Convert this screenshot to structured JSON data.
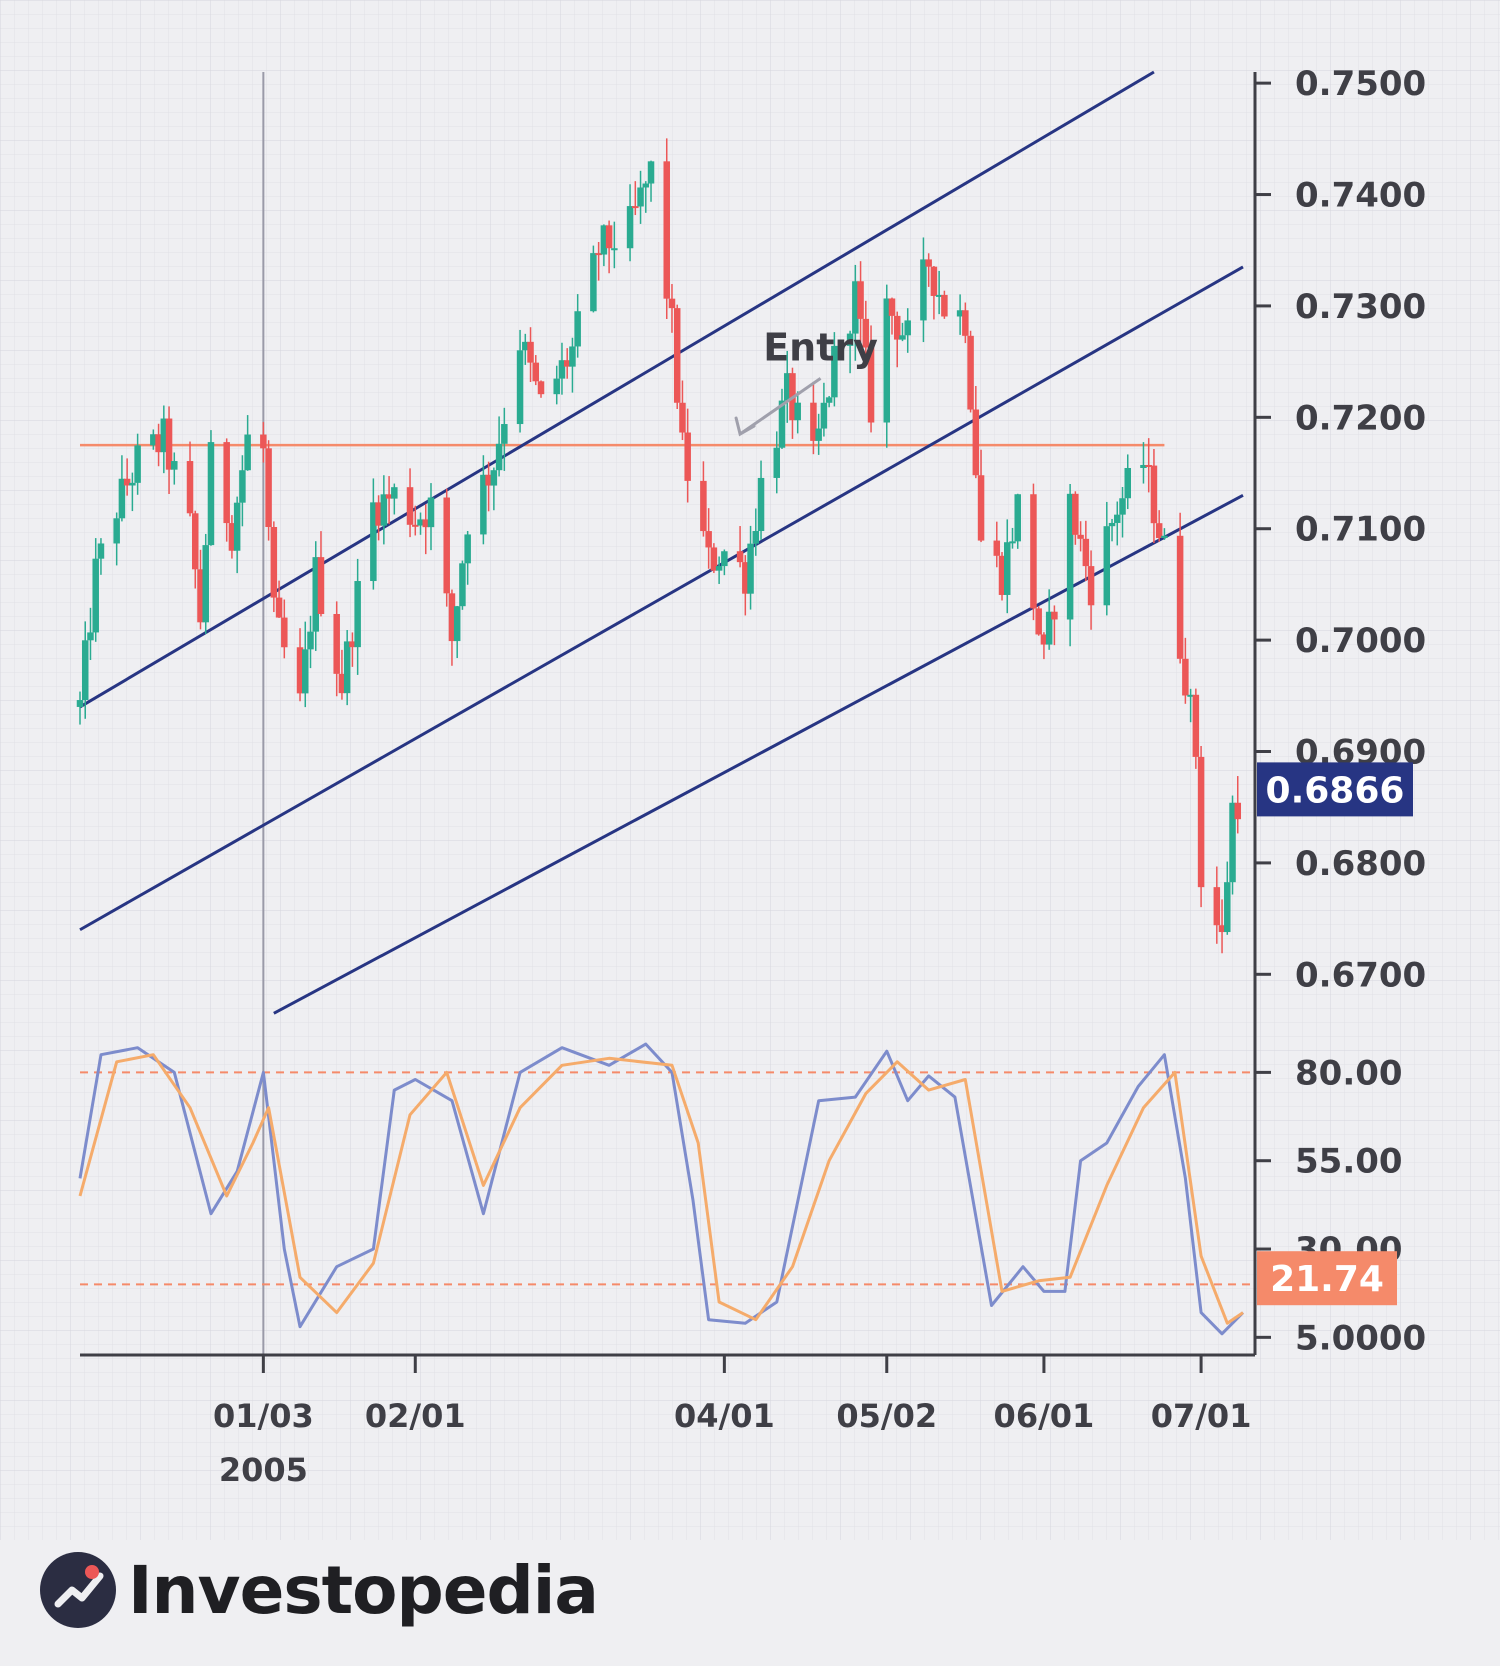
{
  "chart_data": {
    "type": "candlestick",
    "title": "",
    "price_axis": {
      "ticks": [
        "0.7500",
        "0.7400",
        "0.7300",
        "0.7200",
        "0.7100",
        "0.7000",
        "0.6900",
        "0.6800",
        "0.6700"
      ],
      "range": [
        0.665,
        0.751
      ]
    },
    "oscillator_axis": {
      "ticks": [
        "80.00",
        "55.00",
        "30.00",
        "5.0000"
      ],
      "range": [
        0,
        92
      ]
    },
    "x_ticks": [
      {
        "label": "01/03",
        "sub": "2005",
        "date": "2005-01-03"
      },
      {
        "label": "02/01",
        "sub": "",
        "date": "2005-02-01"
      },
      {
        "label": "04/01",
        "sub": "",
        "date": "2005-04-01"
      },
      {
        "label": "05/02",
        "sub": "",
        "date": "2005-05-02"
      },
      {
        "label": "06/01",
        "sub": "",
        "date": "2005-06-01"
      },
      {
        "label": "07/01",
        "sub": "",
        "date": "2005-07-01"
      }
    ],
    "date_range": [
      "2004-11-29",
      "2005-07-09"
    ],
    "marker_date": "2005-01-03",
    "close_path": [
      [
        "2004-11-29",
        0.694
      ],
      [
        "2004-12-02",
        0.706
      ],
      [
        "2004-12-06",
        0.712
      ],
      [
        "2004-12-10",
        0.716
      ],
      [
        "2004-12-15",
        0.718
      ],
      [
        "2004-12-20",
        0.71
      ],
      [
        "2004-12-22",
        0.702
      ],
      [
        "2004-12-24",
        0.716
      ],
      [
        "2004-12-28",
        0.71
      ],
      [
        "2004-12-31",
        0.718
      ],
      [
        "2005-01-03",
        0.717
      ],
      [
        "2005-01-05",
        0.702
      ],
      [
        "2005-01-10",
        0.694
      ],
      [
        "2005-01-13",
        0.706
      ],
      [
        "2005-01-18",
        0.696
      ],
      [
        "2005-01-24",
        0.712
      ],
      [
        "2005-01-28",
        0.713
      ],
      [
        "2005-02-01",
        0.711
      ],
      [
        "2005-02-04",
        0.712
      ],
      [
        "2005-02-08",
        0.7
      ],
      [
        "2005-02-11",
        0.711
      ],
      [
        "2005-02-16",
        0.716
      ],
      [
        "2005-02-21",
        0.727
      ],
      [
        "2005-02-25",
        0.721
      ],
      [
        "2005-03-03",
        0.726
      ],
      [
        "2005-03-08",
        0.735
      ],
      [
        "2005-03-14",
        0.737
      ],
      [
        "2005-03-18",
        0.742
      ],
      [
        "2005-03-22",
        0.728
      ],
      [
        "2005-03-24",
        0.717
      ],
      [
        "2005-03-29",
        0.707
      ],
      [
        "2005-04-01",
        0.708
      ],
      [
        "2005-04-05",
        0.706
      ],
      [
        "2005-04-08",
        0.714
      ],
      [
        "2005-04-13",
        0.722
      ],
      [
        "2005-04-18",
        0.716
      ],
      [
        "2005-04-22",
        0.725
      ],
      [
        "2005-04-26",
        0.731
      ],
      [
        "2005-04-29",
        0.721
      ],
      [
        "2005-05-02",
        0.73
      ],
      [
        "2005-05-06",
        0.727
      ],
      [
        "2005-05-10",
        0.734
      ],
      [
        "2005-05-13",
        0.73
      ],
      [
        "2005-05-17",
        0.729
      ],
      [
        "2005-05-20",
        0.709
      ],
      [
        "2005-05-24",
        0.706
      ],
      [
        "2005-05-27",
        0.712
      ],
      [
        "2005-06-01",
        0.698
      ],
      [
        "2005-06-06",
        0.712
      ],
      [
        "2005-06-10",
        0.705
      ],
      [
        "2005-06-15",
        0.712
      ],
      [
        "2005-06-20",
        0.716
      ],
      [
        "2005-06-24",
        0.708
      ],
      [
        "2005-06-28",
        0.697
      ],
      [
        "2005-06-30",
        0.69
      ],
      [
        "2005-07-01",
        0.679
      ],
      [
        "2005-07-05",
        0.673
      ],
      [
        "2005-07-07",
        0.685
      ],
      [
        "2005-07-09",
        0.6866
      ]
    ],
    "horizontal_line": {
      "value": 0.7175,
      "from": "2004-11-29",
      "to": "2005-06-24"
    },
    "trend_channel": [
      {
        "from": [
          "2004-11-29",
          0.694
        ],
        "to": [
          "2005-06-22",
          0.751
        ]
      },
      {
        "from": [
          "2004-11-29",
          0.674
        ],
        "to": [
          "2005-07-09",
          0.7335
        ]
      },
      {
        "from": [
          "2005-01-05",
          0.6665
        ],
        "to": [
          "2005-07-09",
          0.713
        ]
      }
    ],
    "annotation": {
      "text": "Entry",
      "date": "2005-04-06",
      "value": 0.7235,
      "arrow_to": [
        "2005-04-04",
        0.7185
      ]
    },
    "oscillator": {
      "overbought": 80,
      "oversold": 20,
      "k_line": [
        [
          "2004-11-29",
          50
        ],
        [
          "2004-12-03",
          85
        ],
        [
          "2004-12-10",
          87
        ],
        [
          "2004-12-17",
          80
        ],
        [
          "2004-12-24",
          40
        ],
        [
          "2004-12-29",
          52
        ],
        [
          "2005-01-03",
          80
        ],
        [
          "2005-01-07",
          30
        ],
        [
          "2005-01-10",
          8
        ],
        [
          "2005-01-17",
          25
        ],
        [
          "2005-01-24",
          30
        ],
        [
          "2005-01-28",
          75
        ],
        [
          "2005-02-01",
          78
        ],
        [
          "2005-02-08",
          72
        ],
        [
          "2005-02-14",
          40
        ],
        [
          "2005-02-21",
          80
        ],
        [
          "2005-03-01",
          87
        ],
        [
          "2005-03-10",
          82
        ],
        [
          "2005-03-17",
          88
        ],
        [
          "2005-03-22",
          80
        ],
        [
          "2005-03-26",
          44
        ],
        [
          "2005-03-29",
          10
        ],
        [
          "2005-04-05",
          9
        ],
        [
          "2005-04-11",
          15
        ],
        [
          "2005-04-19",
          72
        ],
        [
          "2005-04-26",
          73
        ],
        [
          "2005-05-02",
          86
        ],
        [
          "2005-05-06",
          72
        ],
        [
          "2005-05-10",
          79
        ],
        [
          "2005-05-15",
          73
        ],
        [
          "2005-05-22",
          14
        ],
        [
          "2005-05-28",
          25
        ],
        [
          "2005-06-01",
          18
        ],
        [
          "2005-06-05",
          18
        ],
        [
          "2005-06-08",
          55
        ],
        [
          "2005-06-13",
          60
        ],
        [
          "2005-06-19",
          76
        ],
        [
          "2005-06-24",
          85
        ],
        [
          "2005-06-28",
          50
        ],
        [
          "2005-07-01",
          12
        ],
        [
          "2005-07-05",
          6
        ],
        [
          "2005-07-09",
          12
        ]
      ],
      "d_line": [
        [
          "2004-11-29",
          45
        ],
        [
          "2004-12-06",
          83
        ],
        [
          "2004-12-13",
          85
        ],
        [
          "2004-12-20",
          70
        ],
        [
          "2004-12-27",
          45
        ],
        [
          "2005-01-01",
          60
        ],
        [
          "2005-01-04",
          70
        ],
        [
          "2005-01-10",
          22
        ],
        [
          "2005-01-17",
          12
        ],
        [
          "2005-01-24",
          26
        ],
        [
          "2005-01-31",
          68
        ],
        [
          "2005-02-07",
          80
        ],
        [
          "2005-02-14",
          48
        ],
        [
          "2005-02-21",
          70
        ],
        [
          "2005-03-01",
          82
        ],
        [
          "2005-03-10",
          84
        ],
        [
          "2005-03-22",
          82
        ],
        [
          "2005-03-27",
          60
        ],
        [
          "2005-03-31",
          15
        ],
        [
          "2005-04-07",
          10
        ],
        [
          "2005-04-14",
          25
        ],
        [
          "2005-04-21",
          55
        ],
        [
          "2005-04-28",
          74
        ],
        [
          "2005-05-04",
          83
        ],
        [
          "2005-05-10",
          75
        ],
        [
          "2005-05-17",
          78
        ],
        [
          "2005-05-24",
          18
        ],
        [
          "2005-05-31",
          21
        ],
        [
          "2005-06-06",
          22
        ],
        [
          "2005-06-13",
          48
        ],
        [
          "2005-06-20",
          70
        ],
        [
          "2005-06-26",
          80
        ],
        [
          "2005-07-01",
          28
        ],
        [
          "2005-07-06",
          9
        ],
        [
          "2005-07-09",
          12
        ]
      ]
    },
    "last_price_badge": "0.6866",
    "oscillator_badge": "21.74",
    "colors": {
      "up": "#2aab91",
      "down": "#ec5757",
      "channel": "#273583",
      "resistance": "#f58a6a",
      "k_line": "#7d8ccc",
      "d_line": "#f5ab6b",
      "price_badge": "#273583",
      "osc_badge": "#f58a6a",
      "axis": "#3f3f46"
    }
  },
  "brand": {
    "name": "Investopedia"
  }
}
